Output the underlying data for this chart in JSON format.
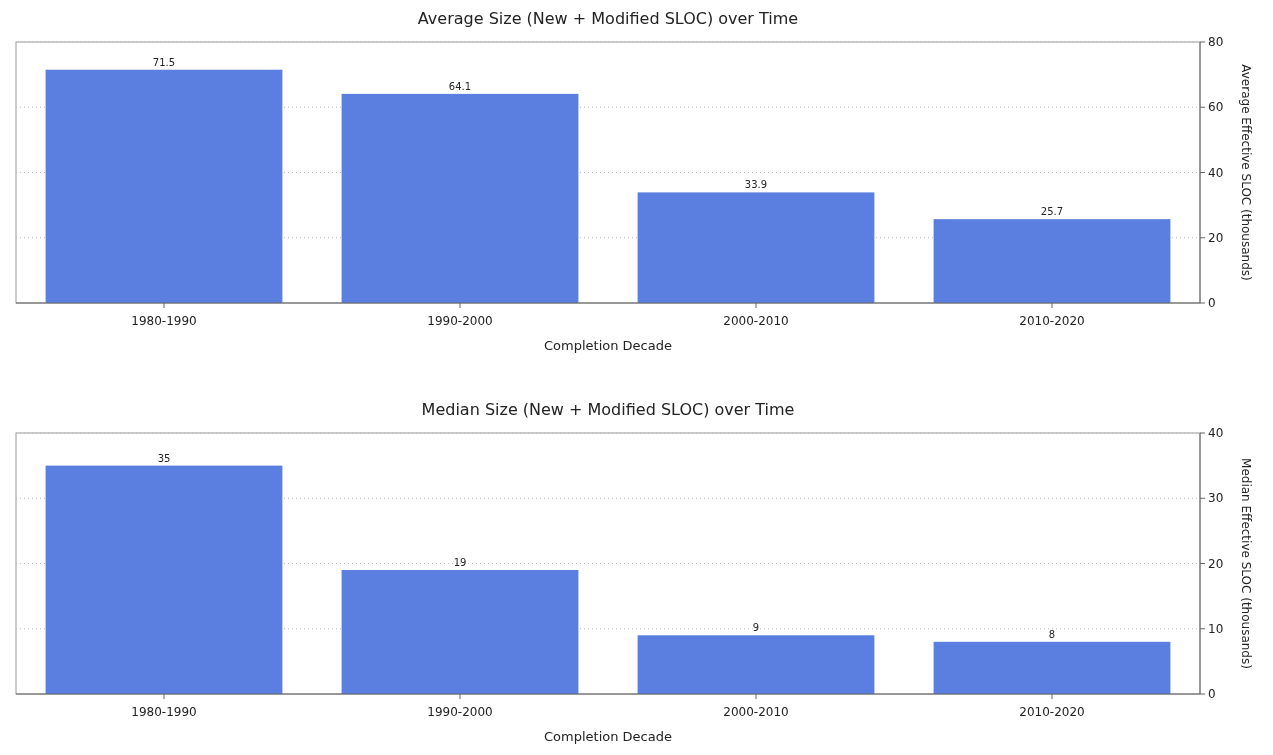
{
  "chart_data": [
    {
      "type": "bar",
      "title": "Average Size (New + Modified SLOC) over Time",
      "xlabel": "Completion Decade",
      "y2label": "Average Effective SLOC (thousands)",
      "categories": [
        "1980-1990",
        "1990-2000",
        "2000-2010",
        "2010-2020"
      ],
      "series": [
        {
          "color": "#5b7fe0",
          "values": [
            71.5,
            64.1,
            33.9,
            25.7
          ],
          "axis": "y2"
        }
      ],
      "y2lim": [
        0,
        80
      ],
      "y2ticks": [
        0,
        20,
        40,
        60,
        80
      ],
      "grid": "y",
      "data_labels": true
    },
    {
      "type": "bar",
      "title": "Median Size (New + Modified SLOC) over Time",
      "xlabel": "Completion Decade",
      "y2label": "Median Effective SLOC (thousands)",
      "categories": [
        "1980-1990",
        "1990-2000",
        "2000-2010",
        "2010-2020"
      ],
      "series": [
        {
          "color": "#5b7fe0",
          "values": [
            35,
            19,
            9,
            8
          ],
          "axis": "y2"
        }
      ],
      "y2lim": [
        0,
        40
      ],
      "y2ticks": [
        0,
        10,
        20,
        30,
        40
      ],
      "grid": "y",
      "data_labels": true
    }
  ]
}
